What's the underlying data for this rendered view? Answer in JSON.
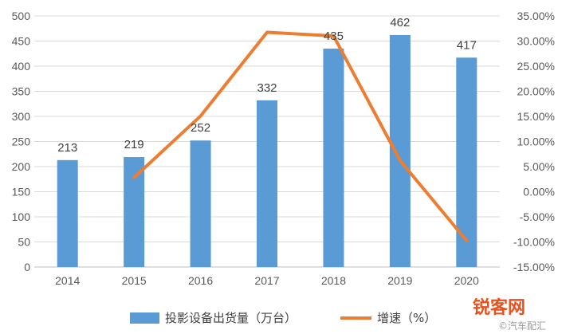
{
  "chart_data": {
    "type": "bar+line",
    "categories": [
      "2014",
      "2015",
      "2016",
      "2017",
      "2018",
      "2019",
      "2020"
    ],
    "series": [
      {
        "name": "投影设备出货量（万台）",
        "type": "bar",
        "axis": "left",
        "color": "#5b9bd5",
        "values": [
          213,
          219,
          252,
          332,
          435,
          462,
          417
        ]
      },
      {
        "name": "增速（%）",
        "type": "line",
        "axis": "right",
        "color": "#ed7d31",
        "values": [
          null,
          2.82,
          15.07,
          31.75,
          31.02,
          6.21,
          -9.74
        ]
      }
    ],
    "left_axis": {
      "ylim": [
        0,
        500
      ],
      "ticks": [
        "0",
        "50",
        "100",
        "150",
        "200",
        "250",
        "300",
        "350",
        "400",
        "450",
        "500"
      ]
    },
    "right_axis": {
      "ylim": [
        -15,
        35
      ],
      "ticks": [
        "-15.00%",
        "-10.00%",
        "-5.00%",
        "0.00%",
        "5.00%",
        "10.00%",
        "15.00%",
        "20.00%",
        "25.00%",
        "30.00%",
        "35.00%"
      ]
    },
    "data_labels": [
      "213",
      "219",
      "252",
      "332",
      "435",
      "462",
      "417"
    ],
    "grid": true,
    "legend_position": "bottom"
  },
  "watermark": {
    "main": "锐客网",
    "sub": "©汽车配汇"
  }
}
